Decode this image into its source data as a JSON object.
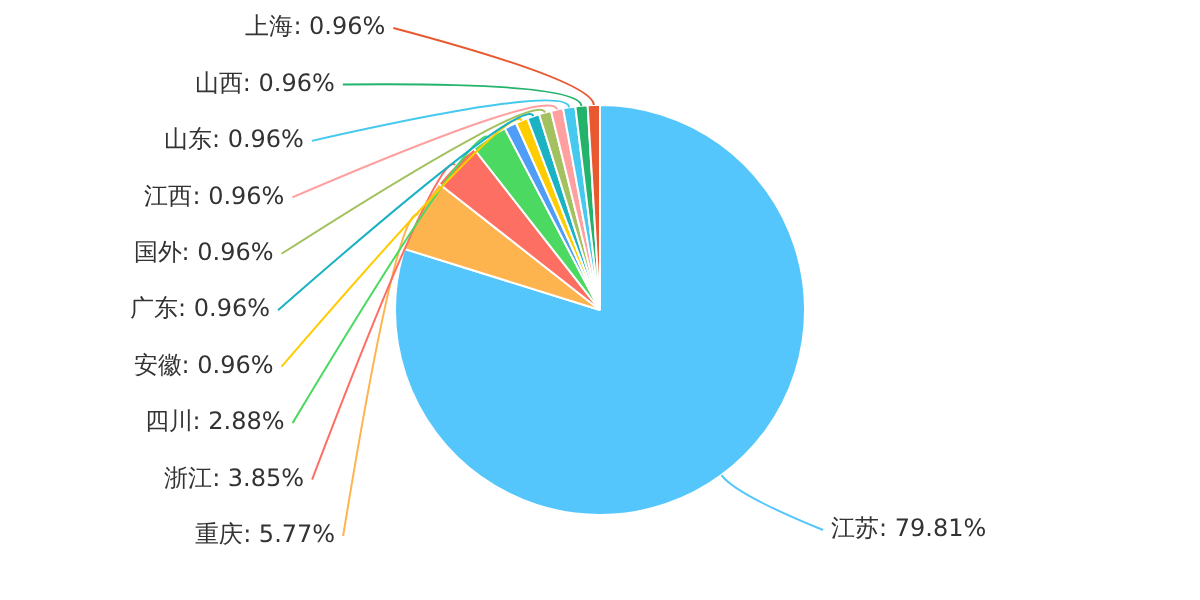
{
  "chart_data": {
    "type": "pie",
    "categories": [
      "江苏",
      "重庆",
      "浙江",
      "四川",
      null,
      "安徽",
      "广东",
      "国外",
      "江西",
      "山东",
      "山西",
      "上海"
    ],
    "values": [
      79.81,
      5.77,
      3.85,
      2.88,
      0.96,
      0.96,
      0.96,
      0.96,
      0.96,
      0.96,
      0.96,
      0.96
    ],
    "colors": [
      "#55c6fc",
      "#fdb44e",
      "#fe6f63",
      "#4bd962",
      "#4f9df7",
      "#ffcc00",
      "#1bb2c4",
      "#a4c160",
      "#ff9f9f",
      "#46c9ee",
      "#24b36b",
      "#e8592f"
    ],
    "value_labels": [
      "79.81%",
      "5.77%",
      "3.85%",
      "2.88%",
      null,
      "0.96%",
      "0.96%",
      "0.96%",
      "0.96%",
      "0.96%",
      "0.96%",
      "0.96%"
    ],
    "legend": false
  }
}
